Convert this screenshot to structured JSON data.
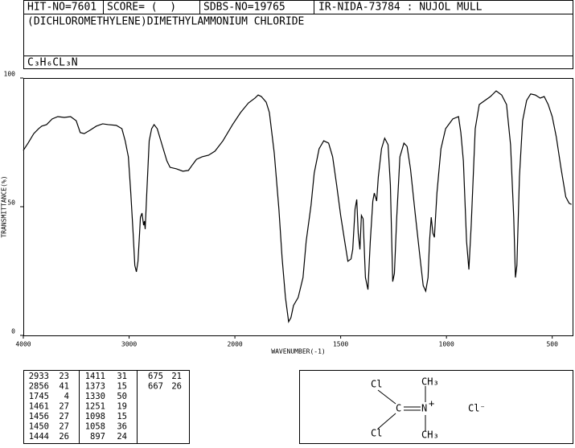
{
  "header": {
    "hit_no": "HIT-NO=7601",
    "score": "SCORE= (  )",
    "sdbs_no": "SDBS-NO=19765",
    "method": "IR-NIDA-73784 : NUJOL MULL",
    "name": "(DICHLOROMETHYLENE)DIMETHYLAMMONIUM CHLORIDE",
    "formula": "C₃H₆CL₃N"
  },
  "chart_data": {
    "type": "line",
    "xlabel": "WAVENUMBER(-1)",
    "ylabel": "TRANSMITTANCE(%)",
    "color": "#000000",
    "xlim": [
      4000,
      400
    ],
    "xticks": [
      4000,
      3000,
      2000,
      1500,
      1000,
      500
    ],
    "ylim": [
      0,
      100
    ],
    "yticks": [
      0,
      50,
      100
    ],
    "x": [
      4000,
      3955,
      3901,
      3856,
      3826,
      3780,
      3727,
      3674,
      3613,
      3553,
      3500,
      3462,
      3424,
      3371,
      3310,
      3250,
      3197,
      3121,
      3068,
      3037,
      3007,
      2984,
      2962,
      2946,
      2931,
      2916,
      2901,
      2893,
      2878,
      2863,
      2855,
      2848,
      2833,
      2810,
      2787,
      2764,
      2734,
      2689,
      2643,
      2613,
      2552,
      2492,
      2439,
      2401,
      2363,
      2310,
      2249,
      2188,
      2113,
      2022,
      1973,
      1936,
      1905,
      1890,
      1875,
      1852,
      1837,
      1814,
      1792,
      1777,
      1761,
      1746,
      1735,
      1723,
      1701,
      1678,
      1663,
      1640,
      1625,
      1602,
      1580,
      1557,
      1538,
      1519,
      1500,
      1481,
      1466,
      1451,
      1443,
      1432,
      1424,
      1417,
      1409,
      1402,
      1394,
      1383,
      1371,
      1360,
      1348,
      1341,
      1330,
      1322,
      1307,
      1292,
      1276,
      1265,
      1254,
      1246,
      1235,
      1220,
      1201,
      1186,
      1170,
      1148,
      1125,
      1110,
      1098,
      1087,
      1080,
      1072,
      1064,
      1057,
      1045,
      1026,
      1004,
      970,
      943,
      932,
      920,
      905,
      894,
      883,
      864,
      845,
      818,
      792,
      765,
      739,
      716,
      697,
      682,
      674,
      667,
      655,
      640,
      621,
      602,
      580,
      557,
      538,
      519,
      500,
      481,
      458,
      436,
      420,
      409
    ],
    "values": [
      71.9,
      74.7,
      78.4,
      80.3,
      81.3,
      81.9,
      84.1,
      85,
      84.7,
      85,
      83.4,
      78.8,
      78.4,
      79.7,
      81.3,
      82.2,
      81.9,
      81.6,
      80.3,
      75.6,
      69.4,
      55.3,
      39.7,
      27.2,
      24.7,
      28.8,
      39.7,
      45.9,
      47.5,
      42.8,
      44.4,
      41.3,
      55.3,
      75.6,
      80.3,
      81.9,
      80.3,
      74.1,
      67.8,
      65.3,
      64.7,
      63.8,
      64.1,
      66.3,
      68.4,
      69.4,
      70,
      71.6,
      75.6,
      81.9,
      86.6,
      90.3,
      92.2,
      93.4,
      92.8,
      90.6,
      86.6,
      70.9,
      49.1,
      30.3,
      14.7,
      5.3,
      6.9,
      11.6,
      14.7,
      22.5,
      36.6,
      50.6,
      63.1,
      72.5,
      75.6,
      74.7,
      69.4,
      58.4,
      46.6,
      36.6,
      28.8,
      29.7,
      33.4,
      49.1,
      52.8,
      39.7,
      33.4,
      46.6,
      45.3,
      22.5,
      17.8,
      36.6,
      52.2,
      55.3,
      52.2,
      61.6,
      72.5,
      76.6,
      74.1,
      58.4,
      20.9,
      24.1,
      45.9,
      69.4,
      74.7,
      73.4,
      64.7,
      47.5,
      30.3,
      19.4,
      17.2,
      22.5,
      36.6,
      45.9,
      39.7,
      38.1,
      55.3,
      72.5,
      80.3,
      84.1,
      85,
      78.8,
      67.8,
      36.6,
      25.6,
      42.8,
      80.3,
      89.7,
      91.3,
      92.8,
      95,
      93.4,
      89.7,
      74.1,
      45.9,
      22.5,
      27.2,
      61.6,
      83.4,
      91.3,
      93.8,
      93.4,
      92.2,
      92.8,
      89.7,
      85,
      77.2,
      64.7,
      53.8,
      51.3,
      50.9
    ]
  },
  "peaks": [
    [
      2933,
      23
    ],
    [
      2856,
      41
    ],
    [
      1745,
      4
    ],
    [
      1461,
      27
    ],
    [
      1456,
      27
    ],
    [
      1450,
      27
    ],
    [
      1444,
      26
    ],
    [
      1411,
      31
    ],
    [
      1373,
      15
    ],
    [
      1330,
      50
    ],
    [
      1251,
      19
    ],
    [
      1098,
      15
    ],
    [
      1058,
      36
    ],
    [
      897,
      24
    ],
    [
      675,
      21
    ],
    [
      667,
      26
    ]
  ],
  "structure": {
    "cl_top": "Cl",
    "cl_bottom": "Cl",
    "carbon": "C",
    "nitrogen": "N",
    "charge": "+",
    "methyl_top": "CH₃",
    "methyl_bottom": "CH₃",
    "counterion": "Cl⁻"
  }
}
